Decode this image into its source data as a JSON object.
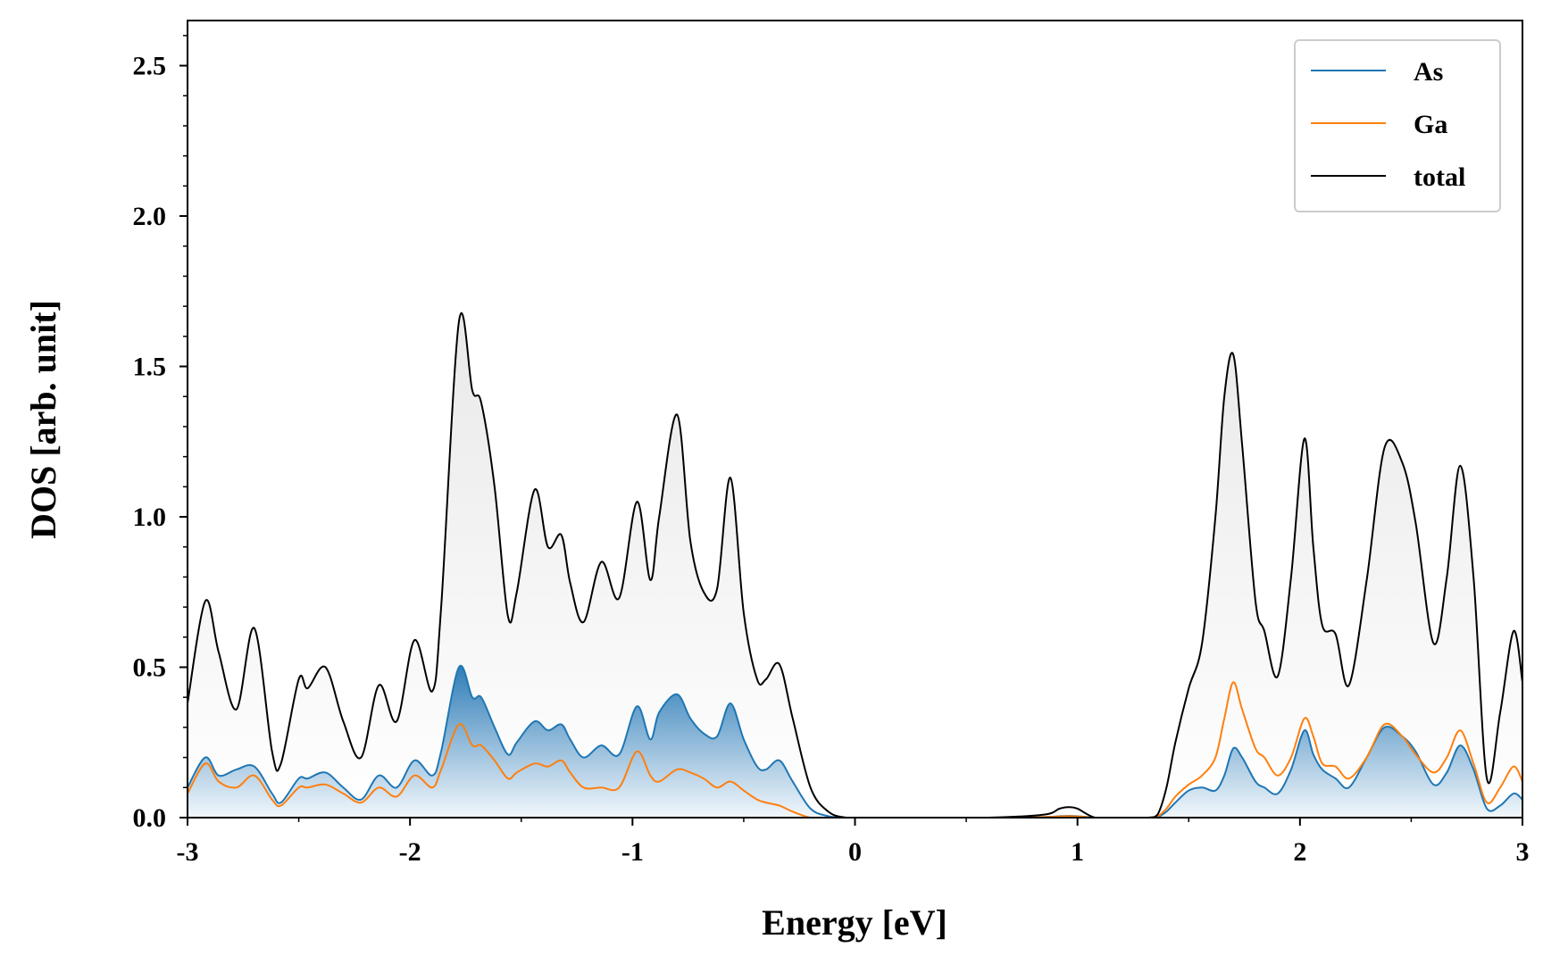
{
  "chart_data": {
    "type": "line",
    "title": "",
    "xlabel": "Energy [eV]",
    "ylabel": "DOS [arb. unit]",
    "xlim": [
      -3,
      3
    ],
    "ylim": [
      0,
      2.65
    ],
    "grid": false,
    "legend_position": "top-right",
    "x_ticks": [
      {
        "value": -3,
        "label": "-3"
      },
      {
        "value": -2,
        "label": "-2"
      },
      {
        "value": -1,
        "label": "-1"
      },
      {
        "value": 0,
        "label": "0"
      },
      {
        "value": 1,
        "label": "1"
      },
      {
        "value": 2,
        "label": "2"
      },
      {
        "value": 3,
        "label": "3"
      }
    ],
    "y_ticks": [
      {
        "value": 0.0,
        "label": "0.0"
      },
      {
        "value": 0.5,
        "label": "0.5"
      },
      {
        "value": 1.0,
        "label": "1.0"
      },
      {
        "value": 1.5,
        "label": "1.5"
      },
      {
        "value": 2.0,
        "label": "2.0"
      },
      {
        "value": 2.5,
        "label": "2.5"
      }
    ],
    "x": [
      -3.0,
      -2.92,
      -2.86,
      -2.78,
      -2.7,
      -2.62,
      -2.58,
      -2.5,
      -2.46,
      -2.38,
      -2.3,
      -2.22,
      -2.14,
      -2.06,
      -1.98,
      -1.9,
      -1.86,
      -1.78,
      -1.72,
      -1.68,
      -1.62,
      -1.56,
      -1.52,
      -1.44,
      -1.38,
      -1.32,
      -1.28,
      -1.22,
      -1.14,
      -1.06,
      -0.98,
      -0.92,
      -0.88,
      -0.8,
      -0.74,
      -0.68,
      -0.62,
      -0.56,
      -0.5,
      -0.44,
      -0.4,
      -0.34,
      -0.28,
      -0.2,
      -0.12,
      -0.04,
      0.04,
      0.3,
      0.6,
      0.85,
      0.92,
      0.96,
      1.0,
      1.08,
      1.2,
      1.32,
      1.36,
      1.4,
      1.44,
      1.5,
      1.56,
      1.62,
      1.66,
      1.7,
      1.74,
      1.8,
      1.84,
      1.9,
      1.96,
      2.02,
      2.06,
      2.1,
      2.16,
      2.22,
      2.3,
      2.38,
      2.46,
      2.52,
      2.6,
      2.66,
      2.72,
      2.78,
      2.84,
      2.9,
      2.96,
      3.0
    ],
    "series": [
      {
        "name": "As",
        "color": "#1f77b4",
        "values": [
          0.1,
          0.2,
          0.14,
          0.16,
          0.17,
          0.08,
          0.05,
          0.13,
          0.13,
          0.15,
          0.1,
          0.06,
          0.14,
          0.1,
          0.19,
          0.14,
          0.22,
          0.5,
          0.4,
          0.4,
          0.3,
          0.21,
          0.25,
          0.32,
          0.29,
          0.31,
          0.26,
          0.2,
          0.24,
          0.21,
          0.37,
          0.26,
          0.35,
          0.41,
          0.33,
          0.28,
          0.27,
          0.38,
          0.26,
          0.17,
          0.16,
          0.19,
          0.12,
          0.03,
          0.005,
          0.0,
          0.0,
          0.0,
          0.0,
          0.002,
          0.005,
          0.006,
          0.005,
          0.0,
          0.0,
          0.0,
          0.002,
          0.02,
          0.05,
          0.09,
          0.1,
          0.09,
          0.14,
          0.23,
          0.2,
          0.12,
          0.1,
          0.08,
          0.16,
          0.29,
          0.21,
          0.16,
          0.13,
          0.1,
          0.2,
          0.3,
          0.27,
          0.22,
          0.11,
          0.15,
          0.24,
          0.16,
          0.03,
          0.04,
          0.08,
          0.06
        ]
      },
      {
        "name": "Ga",
        "color": "#ff7f0e",
        "values": [
          0.08,
          0.18,
          0.12,
          0.1,
          0.14,
          0.06,
          0.04,
          0.1,
          0.1,
          0.11,
          0.08,
          0.05,
          0.1,
          0.07,
          0.14,
          0.1,
          0.16,
          0.31,
          0.24,
          0.24,
          0.19,
          0.13,
          0.15,
          0.18,
          0.17,
          0.19,
          0.15,
          0.1,
          0.1,
          0.1,
          0.22,
          0.14,
          0.12,
          0.16,
          0.15,
          0.13,
          0.1,
          0.12,
          0.09,
          0.06,
          0.05,
          0.04,
          0.02,
          0.0,
          0.0,
          0.0,
          0.0,
          0.0,
          0.0,
          0.002,
          0.004,
          0.005,
          0.004,
          0.0,
          0.0,
          0.0,
          0.004,
          0.03,
          0.07,
          0.11,
          0.14,
          0.2,
          0.33,
          0.45,
          0.36,
          0.23,
          0.2,
          0.14,
          0.2,
          0.33,
          0.27,
          0.18,
          0.17,
          0.13,
          0.2,
          0.31,
          0.27,
          0.21,
          0.15,
          0.2,
          0.29,
          0.18,
          0.05,
          0.1,
          0.17,
          0.12
        ]
      },
      {
        "name": "total",
        "color": "#000000",
        "values": [
          0.38,
          0.72,
          0.55,
          0.36,
          0.63,
          0.22,
          0.18,
          0.46,
          0.43,
          0.5,
          0.32,
          0.2,
          0.44,
          0.32,
          0.59,
          0.42,
          0.7,
          1.65,
          1.42,
          1.38,
          1.1,
          0.67,
          0.75,
          1.09,
          0.9,
          0.94,
          0.78,
          0.65,
          0.85,
          0.73,
          1.05,
          0.79,
          1.0,
          1.34,
          0.92,
          0.75,
          0.76,
          1.13,
          0.68,
          0.46,
          0.46,
          0.51,
          0.33,
          0.1,
          0.02,
          0.0,
          0.0,
          0.0,
          0.0,
          0.01,
          0.03,
          0.035,
          0.03,
          0.0,
          0.0,
          0.0,
          0.01,
          0.1,
          0.25,
          0.43,
          0.58,
          1.0,
          1.4,
          1.54,
          1.24,
          0.72,
          0.62,
          0.47,
          0.8,
          1.26,
          0.9,
          0.64,
          0.61,
          0.44,
          0.79,
          1.23,
          1.18,
          0.98,
          0.58,
          0.8,
          1.17,
          0.8,
          0.13,
          0.35,
          0.62,
          0.45
        ]
      }
    ]
  }
}
